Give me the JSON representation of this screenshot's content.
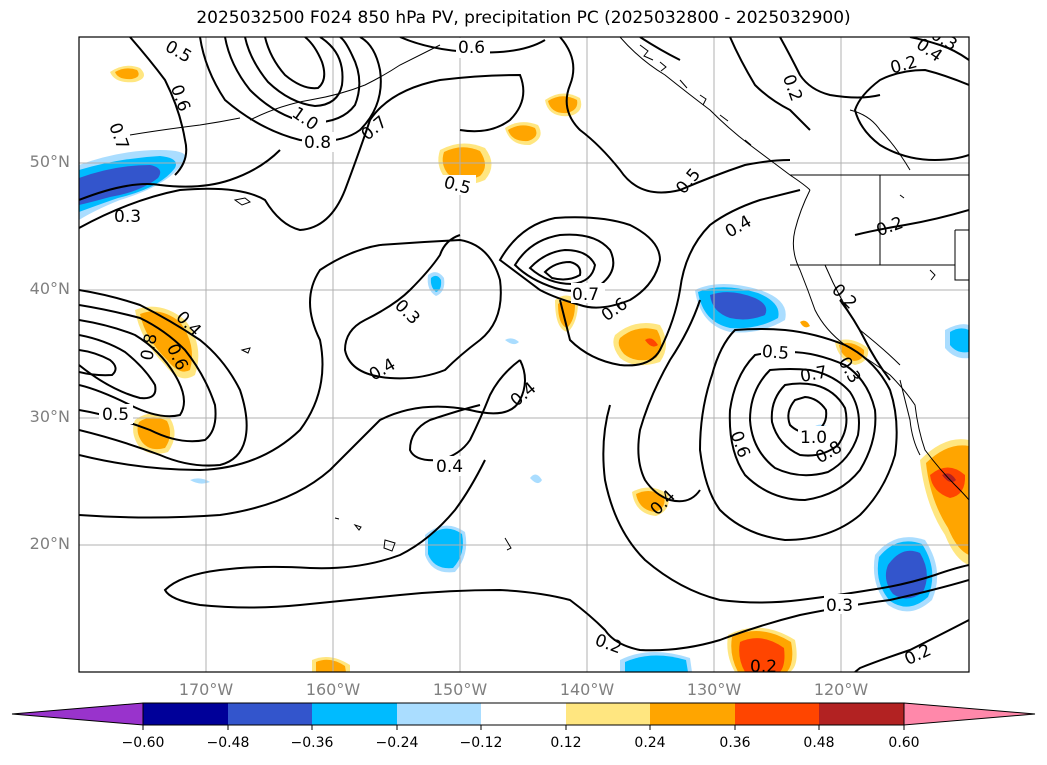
{
  "title": "2025032500 F024 850 hPa PV, precipitation PC (2025032800 - 2025032900)",
  "lat_labels": [
    "50°N",
    "40°N",
    "30°N",
    "20°N"
  ],
  "lon_labels": [
    "170°W",
    "160°W",
    "150°W",
    "140°W",
    "130°W",
    "120°W"
  ],
  "colorbar": {
    "ticks": [
      "−0.60",
      "−0.48",
      "−0.36",
      "−0.24",
      "−0.12",
      "0.12",
      "0.24",
      "0.36",
      "0.48",
      "0.60"
    ],
    "colors": [
      "#9933cc",
      "#000099",
      "#3355cc",
      "#00bbff",
      "#aaddff",
      "#ffffff",
      "#ffe680",
      "#ffa500",
      "#ff4500",
      "#b22222",
      "#ff88aa"
    ]
  },
  "contour_labels": [
    {
      "text": "0.5"
    },
    {
      "text": "0.6"
    },
    {
      "text": "0.6"
    },
    {
      "text": "0.7"
    },
    {
      "text": "1.0"
    },
    {
      "text": "0.8"
    },
    {
      "text": "0.7"
    },
    {
      "text": "0.5"
    },
    {
      "text": "0.3"
    },
    {
      "text": "0.5"
    },
    {
      "text": "0.4"
    },
    {
      "text": "0.2"
    },
    {
      "text": "0.4"
    },
    {
      "text": "0.2"
    },
    {
      "text": "0.3"
    },
    {
      "text": "0.7"
    },
    {
      "text": "0.6"
    },
    {
      "text": "0.3"
    },
    {
      "text": "0.4"
    },
    {
      "text": "0.4"
    },
    {
      "text": "0.4"
    },
    {
      "text": "0.4"
    },
    {
      "text": "0.2"
    },
    {
      "text": "0.5"
    },
    {
      "text": "0.7"
    },
    {
      "text": "1.0"
    },
    {
      "text": "0.6"
    },
    {
      "text": "0.8"
    },
    {
      "text": "0.3"
    },
    {
      "text": "0.3"
    },
    {
      "text": "0.2"
    },
    {
      "text": "0.2"
    },
    {
      "text": "0.2"
    },
    {
      "text": "0.4"
    },
    {
      "text": "0.6"
    },
    {
      "text": "0.8"
    },
    {
      "text": "0.5"
    },
    {
      "text": "0.2"
    }
  ]
}
